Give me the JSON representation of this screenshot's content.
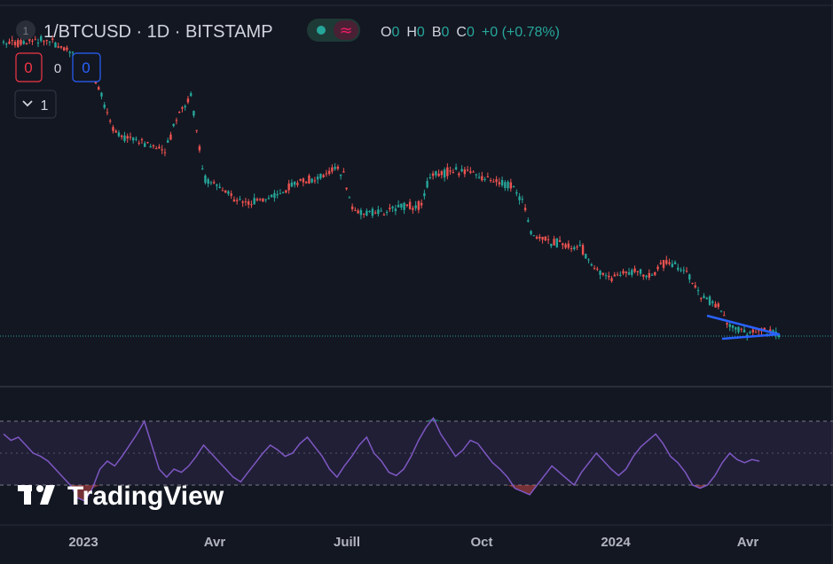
{
  "header": {
    "badge": "1",
    "symbol_line": "1/BTCUSD · 1D · BITSTAMP",
    "ohlc": [
      {
        "k": "O",
        "v": "0"
      },
      {
        "k": "H",
        "v": "0"
      },
      {
        "k": "B",
        "v": "0"
      },
      {
        "k": "C",
        "v": "0"
      }
    ],
    "change": "+0 (+0.78%)"
  },
  "trade": {
    "sell": "0",
    "spread": "0",
    "buy": "0"
  },
  "indicators_toggle": {
    "count": "1"
  },
  "watermark": "TradingView",
  "colors": {
    "bg": "#131722",
    "up": "#26a69a",
    "down": "#ef5350",
    "rsi_line": "#7e57c2",
    "rsi_band": "rgba(126,87,194,0.12)",
    "triangle": "#2962ff",
    "price_line": "#26a69a",
    "grid": "#2a2e39"
  },
  "chart_data": [
    {
      "type": "candlestick",
      "title": "1/BTCUSD · 1D · BITSTAMP",
      "xlabel": "",
      "ylabel": "",
      "x_ticks": [
        "2023",
        "Avr",
        "Juill",
        "Oct",
        "2024",
        "Avr"
      ],
      "grid": false,
      "series": [
        {
          "name": "",
          "trend_path": [
            [
              0,
              50
            ],
            [
              0.05,
              45
            ],
            [
              0.1,
              70
            ],
            [
              0.13,
              150
            ],
            [
              0.16,
              160
            ],
            [
              0.19,
              170
            ],
            [
              0.205,
              130
            ],
            [
              0.22,
              108
            ],
            [
              0.235,
              200
            ],
            [
              0.26,
              215
            ],
            [
              0.28,
              230
            ],
            [
              0.31,
              225
            ],
            [
              0.34,
              208
            ],
            [
              0.37,
              200
            ],
            [
              0.39,
              188
            ],
            [
              0.4,
              200
            ],
            [
              0.41,
              238
            ],
            [
              0.44,
              240
            ],
            [
              0.47,
              232
            ],
            [
              0.49,
              232
            ],
            [
              0.5,
              200
            ],
            [
              0.53,
              192
            ],
            [
              0.55,
              195
            ],
            [
              0.58,
              205
            ],
            [
              0.6,
              212
            ],
            [
              0.61,
              228
            ],
            [
              0.62,
              265
            ],
            [
              0.65,
              275
            ],
            [
              0.68,
              282
            ],
            [
              0.69,
              300
            ],
            [
              0.71,
              313
            ],
            [
              0.74,
              306
            ],
            [
              0.76,
              312
            ],
            [
              0.77,
              300
            ],
            [
              0.78,
              295
            ],
            [
              0.8,
              305
            ],
            [
              0.82,
              335
            ],
            [
              0.84,
              345
            ],
            [
              0.85,
              365
            ],
            [
              0.87,
              375
            ],
            [
              0.89,
              372
            ],
            [
              0.91,
              376
            ]
          ]
        }
      ],
      "annotations": [
        "triangle pattern",
        "last price line"
      ]
    },
    {
      "type": "line",
      "title": "",
      "xlabel": "",
      "ylabel": "",
      "band": [
        30,
        70
      ],
      "mid": 50,
      "series": [
        {
          "name": "",
          "values": [
            62,
            58,
            60,
            55,
            50,
            48,
            45,
            40,
            35,
            30,
            22,
            20,
            28,
            40,
            45,
            42,
            48,
            55,
            62,
            70,
            55,
            40,
            35,
            40,
            38,
            42,
            48,
            55,
            50,
            45,
            40,
            35,
            32,
            38,
            44,
            50,
            55,
            52,
            48,
            50,
            56,
            60,
            54,
            48,
            40,
            35,
            42,
            48,
            55,
            60,
            50,
            45,
            38,
            36,
            40,
            48,
            58,
            66,
            72,
            62,
            55,
            48,
            52,
            58,
            56,
            50,
            44,
            40,
            35,
            28,
            26,
            24,
            30,
            36,
            42,
            38,
            34,
            30,
            38,
            44,
            50,
            45,
            40,
            36,
            40,
            48,
            54,
            58,
            62,
            56,
            48,
            44,
            38,
            30,
            28,
            30,
            36,
            44,
            50,
            46,
            44,
            46,
            45
          ]
        }
      ]
    }
  ]
}
